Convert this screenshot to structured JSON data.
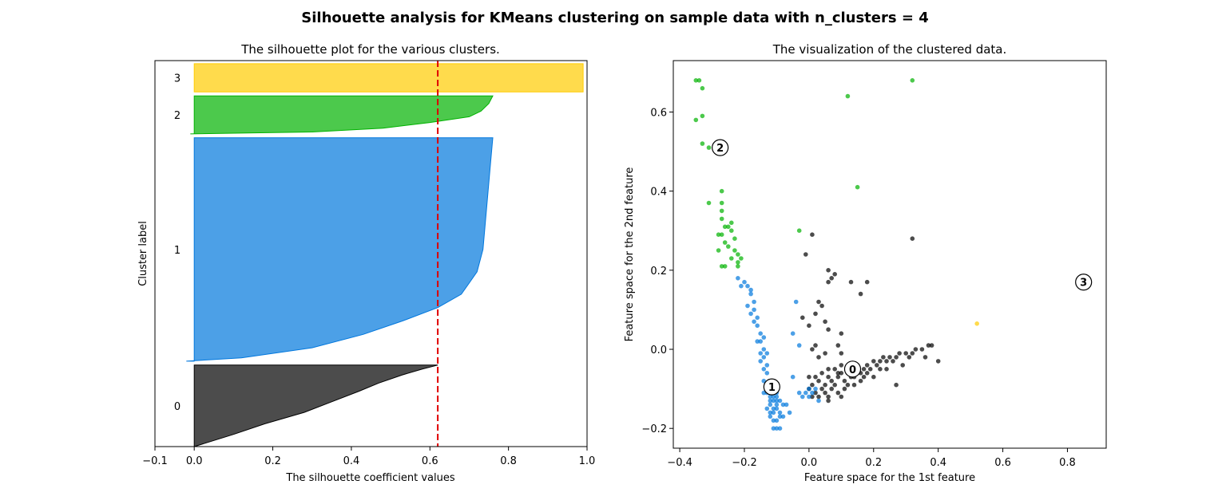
{
  "suptitle": "Silhouette analysis for KMeans clustering on sample data with n_clusters = 4",
  "chart_data": [
    {
      "type": "area",
      "title": "The silhouette plot for the various clusters.",
      "xlabel": "The silhouette coefficient values",
      "ylabel": "Cluster label",
      "xlim": [
        -0.1,
        1.0
      ],
      "xticks": [
        -0.1,
        0.0,
        0.2,
        0.4,
        0.6,
        0.8,
        1.0
      ],
      "xtick_labels": [
        "−0.1",
        "0.0",
        "0.2",
        "0.4",
        "0.6",
        "0.8",
        "1.0"
      ],
      "ylim": [
        0,
        985
      ],
      "average_silhouette": 0.62,
      "clusters": [
        {
          "label": "0",
          "color": "#000000",
          "y_start": 0,
          "y_end": 208,
          "profile": [
            [
              0,
              0.62
            ],
            [
              0.05,
              0.58
            ],
            [
              0.12,
              0.53
            ],
            [
              0.22,
              0.47
            ],
            [
              0.32,
              0.42
            ],
            [
              0.45,
              0.35
            ],
            [
              0.58,
              0.28
            ],
            [
              0.72,
              0.18
            ],
            [
              0.85,
              0.1
            ],
            [
              1,
              0.0
            ]
          ]
        },
        {
          "label": "1",
          "color": "#0077dd",
          "y_start": 218,
          "y_end": 788,
          "profile": [
            [
              0,
              0.76
            ],
            [
              0.1,
              0.755
            ],
            [
              0.3,
              0.745
            ],
            [
              0.5,
              0.735
            ],
            [
              0.6,
              0.72
            ],
            [
              0.65,
              0.7
            ],
            [
              0.7,
              0.68
            ],
            [
              0.76,
              0.62
            ],
            [
              0.82,
              0.53
            ],
            [
              0.88,
              0.43
            ],
            [
              0.94,
              0.3
            ],
            [
              0.985,
              0.12
            ],
            [
              1,
              -0.02
            ]
          ]
        },
        {
          "label": "2",
          "color": "#00b200",
          "y_start": 798,
          "y_end": 895,
          "profile": [
            [
              0,
              0.76
            ],
            [
              0.2,
              0.75
            ],
            [
              0.4,
              0.73
            ],
            [
              0.55,
              0.7
            ],
            [
              0.7,
              0.6
            ],
            [
              0.85,
              0.48
            ],
            [
              0.95,
              0.3
            ],
            [
              1,
              -0.01
            ]
          ]
        },
        {
          "label": "3",
          "color": "#ffcc00",
          "y_start": 905,
          "y_end": 977,
          "profile": [
            [
              0,
              0.99
            ],
            [
              1,
              0.99
            ]
          ]
        }
      ]
    },
    {
      "type": "scatter",
      "title": "The visualization of the clustered data.",
      "xlabel": "Feature space for the 1st feature",
      "ylabel": "Feature space for the 2nd feature",
      "xlim": [
        -0.42,
        0.92
      ],
      "ylim": [
        -0.25,
        0.73
      ],
      "xticks": [
        -0.4,
        -0.2,
        0.0,
        0.2,
        0.4,
        0.6,
        0.8
      ],
      "xtick_labels": [
        "−0.4",
        "−0.2",
        "0.0",
        "0.2",
        "0.4",
        "0.6",
        "0.8"
      ],
      "yticks": [
        -0.2,
        0.0,
        0.2,
        0.4,
        0.6
      ],
      "ytick_labels": [
        "−0.2",
        "0.0",
        "0.2",
        "0.4",
        "0.6"
      ],
      "centers": [
        {
          "label": "0",
          "x": 0.135,
          "y": -0.05
        },
        {
          "label": "1",
          "x": -0.115,
          "y": -0.095
        },
        {
          "label": "2",
          "x": -0.275,
          "y": 0.51
        },
        {
          "label": "3",
          "x": 0.85,
          "y": 0.17
        }
      ],
      "clusters": [
        {
          "label": "0",
          "color": "#000000",
          "points": [
            [
              0.0,
              -0.1
            ],
            [
              0.01,
              -0.09
            ],
            [
              0.02,
              -0.11
            ],
            [
              0.03,
              -0.08
            ],
            [
              0.04,
              -0.1
            ],
            [
              0.05,
              -0.09
            ],
            [
              0.06,
              -0.07
            ],
            [
              0.07,
              -0.08
            ],
            [
              0.08,
              -0.09
            ],
            [
              0.09,
              -0.07
            ],
            [
              0.1,
              -0.06
            ],
            [
              0.11,
              -0.08
            ],
            [
              0.12,
              -0.06
            ],
            [
              0.13,
              -0.05
            ],
            [
              0.14,
              -0.07
            ],
            [
              0.15,
              -0.04
            ],
            [
              0.16,
              -0.06
            ],
            [
              0.17,
              -0.05
            ],
            [
              0.18,
              -0.04
            ],
            [
              0.19,
              -0.05
            ],
            [
              0.2,
              -0.03
            ],
            [
              0.21,
              -0.04
            ],
            [
              0.22,
              -0.03
            ],
            [
              0.23,
              -0.02
            ],
            [
              0.24,
              -0.03
            ],
            [
              0.25,
              -0.02
            ],
            [
              0.27,
              -0.02
            ],
            [
              0.28,
              -0.01
            ],
            [
              0.3,
              -0.01
            ],
            [
              0.31,
              -0.02
            ],
            [
              0.33,
              0.0
            ],
            [
              0.35,
              0.0
            ],
            [
              0.37,
              0.01
            ],
            [
              0.38,
              0.01
            ],
            [
              0.4,
              -0.03
            ],
            [
              0.36,
              -0.02
            ],
            [
              0.03,
              -0.12
            ],
            [
              0.05,
              -0.11
            ],
            [
              0.07,
              -0.1
            ],
            [
              0.09,
              -0.11
            ],
            [
              0.06,
              -0.12
            ],
            [
              0.12,
              -0.09
            ],
            [
              0.16,
              -0.08
            ],
            [
              0.2,
              -0.07
            ],
            [
              0.08,
              -0.05
            ],
            [
              0.1,
              -0.04
            ],
            [
              0.04,
              -0.06
            ],
            [
              0.02,
              -0.07
            ],
            [
              0.0,
              -0.07
            ],
            [
              0.01,
              -0.12
            ],
            [
              0.11,
              -0.1
            ],
            [
              0.14,
              -0.09
            ],
            [
              0.18,
              -0.06
            ],
            [
              0.22,
              -0.05
            ],
            [
              0.26,
              -0.03
            ],
            [
              0.29,
              -0.04
            ],
            [
              0.32,
              -0.01
            ],
            [
              0.06,
              -0.05
            ],
            [
              0.09,
              -0.06
            ],
            [
              0.13,
              -0.07
            ],
            [
              0.17,
              -0.07
            ],
            [
              0.24,
              -0.05
            ],
            [
              0.27,
              -0.09
            ],
            [
              0.06,
              -0.13
            ],
            [
              0.1,
              -0.12
            ],
            [
              -0.01,
              0.24
            ],
            [
              0.01,
              0.29
            ],
            [
              0.05,
              0.07
            ],
            [
              0.06,
              0.17
            ],
            [
              0.06,
              0.2
            ],
            [
              0.07,
              0.18
            ],
            [
              0.08,
              0.19
            ],
            [
              0.04,
              0.11
            ],
            [
              0.02,
              0.09
            ],
            [
              0.03,
              0.12
            ],
            [
              -0.02,
              0.08
            ],
            [
              0.0,
              0.06
            ],
            [
              0.03,
              -0.02
            ],
            [
              0.01,
              0.0
            ],
            [
              0.06,
              0.05
            ],
            [
              0.1,
              -0.01
            ],
            [
              0.13,
              0.17
            ],
            [
              0.16,
              0.14
            ],
            [
              0.18,
              0.17
            ],
            [
              0.32,
              0.28
            ],
            [
              0.09,
              0.01
            ],
            [
              0.02,
              0.01
            ],
            [
              0.05,
              -0.01
            ],
            [
              0.1,
              0.04
            ]
          ]
        },
        {
          "label": "1",
          "color": "#0077dd",
          "points": [
            [
              -0.12,
              -0.14
            ],
            [
              -0.11,
              -0.15
            ],
            [
              -0.1,
              -0.13
            ],
            [
              -0.09,
              -0.16
            ],
            [
              -0.12,
              -0.12
            ],
            [
              -0.11,
              -0.1
            ],
            [
              -0.1,
              -0.11
            ],
            [
              -0.13,
              -0.15
            ],
            [
              -0.12,
              -0.17
            ],
            [
              -0.1,
              -0.18
            ],
            [
              -0.09,
              -0.2
            ],
            [
              -0.11,
              -0.16
            ],
            [
              -0.1,
              -0.14
            ],
            [
              -0.12,
              -0.09
            ],
            [
              -0.13,
              -0.06
            ],
            [
              -0.13,
              -0.04
            ],
            [
              -0.14,
              -0.02
            ],
            [
              -0.14,
              0.0
            ],
            [
              -0.15,
              0.02
            ],
            [
              -0.15,
              0.04
            ],
            [
              -0.16,
              0.06
            ],
            [
              -0.16,
              0.08
            ],
            [
              -0.17,
              0.1
            ],
            [
              -0.17,
              0.12
            ],
            [
              -0.18,
              0.14
            ],
            [
              -0.18,
              0.15
            ],
            [
              -0.19,
              0.16
            ],
            [
              -0.2,
              0.17
            ],
            [
              -0.21,
              0.16
            ],
            [
              -0.22,
              0.18
            ],
            [
              -0.13,
              -0.11
            ],
            [
              -0.12,
              -0.13
            ],
            [
              -0.11,
              -0.12
            ],
            [
              -0.1,
              -0.12
            ],
            [
              -0.09,
              -0.13
            ],
            [
              -0.08,
              -0.14
            ],
            [
              -0.13,
              -0.09
            ],
            [
              -0.12,
              -0.11
            ],
            [
              -0.11,
              -0.13
            ],
            [
              -0.1,
              -0.15
            ],
            [
              -0.11,
              -0.18
            ],
            [
              -0.12,
              -0.16
            ],
            [
              -0.09,
              -0.17
            ],
            [
              -0.08,
              -0.17
            ],
            [
              -0.1,
              -0.2
            ],
            [
              -0.11,
              -0.2
            ],
            [
              -0.16,
              0.02
            ],
            [
              -0.15,
              -0.01
            ],
            [
              -0.14,
              -0.05
            ],
            [
              -0.15,
              -0.03
            ],
            [
              -0.17,
              0.07
            ],
            [
              -0.18,
              0.09
            ],
            [
              -0.19,
              0.11
            ],
            [
              -0.14,
              0.03
            ],
            [
              -0.13,
              -0.01
            ],
            [
              -0.05,
              0.04
            ],
            [
              -0.04,
              0.12
            ],
            [
              -0.03,
              0.01
            ],
            [
              -0.05,
              -0.07
            ],
            [
              0.0,
              -0.1
            ],
            [
              0.01,
              -0.11
            ],
            [
              -0.01,
              -0.11
            ],
            [
              0.02,
              -0.1
            ],
            [
              -0.03,
              -0.11
            ],
            [
              -0.06,
              -0.16
            ],
            [
              -0.07,
              -0.14
            ],
            [
              0.03,
              -0.13
            ],
            [
              -0.02,
              -0.12
            ],
            [
              0.0,
              -0.12
            ],
            [
              -0.14,
              -0.11
            ],
            [
              -0.14,
              -0.08
            ]
          ]
        },
        {
          "label": "2",
          "color": "#00b200",
          "points": [
            [
              -0.35,
              0.68
            ],
            [
              -0.34,
              0.68
            ],
            [
              -0.35,
              0.58
            ],
            [
              -0.33,
              0.66
            ],
            [
              -0.33,
              0.59
            ],
            [
              -0.33,
              0.52
            ],
            [
              -0.31,
              0.51
            ],
            [
              -0.31,
              0.37
            ],
            [
              -0.27,
              0.4
            ],
            [
              -0.27,
              0.37
            ],
            [
              -0.27,
              0.35
            ],
            [
              -0.27,
              0.33
            ],
            [
              -0.26,
              0.31
            ],
            [
              -0.25,
              0.31
            ],
            [
              -0.24,
              0.3
            ],
            [
              -0.24,
              0.32
            ],
            [
              -0.23,
              0.28
            ],
            [
              -0.23,
              0.25
            ],
            [
              -0.22,
              0.24
            ],
            [
              -0.22,
              0.22
            ],
            [
              -0.26,
              0.21
            ],
            [
              -0.27,
              0.21
            ],
            [
              -0.28,
              0.25
            ],
            [
              -0.26,
              0.27
            ],
            [
              -0.28,
              0.29
            ],
            [
              -0.27,
              0.29
            ],
            [
              -0.25,
              0.26
            ],
            [
              -0.24,
              0.23
            ],
            [
              0.12,
              0.64
            ],
            [
              0.32,
              0.68
            ],
            [
              0.15,
              0.41
            ],
            [
              -0.03,
              0.3
            ],
            [
              -0.22,
              0.21
            ],
            [
              -0.21,
              0.23
            ]
          ]
        },
        {
          "label": "3",
          "color": "#ffcc00",
          "points": [
            [
              0.52,
              0.065
            ]
          ]
        }
      ]
    }
  ]
}
